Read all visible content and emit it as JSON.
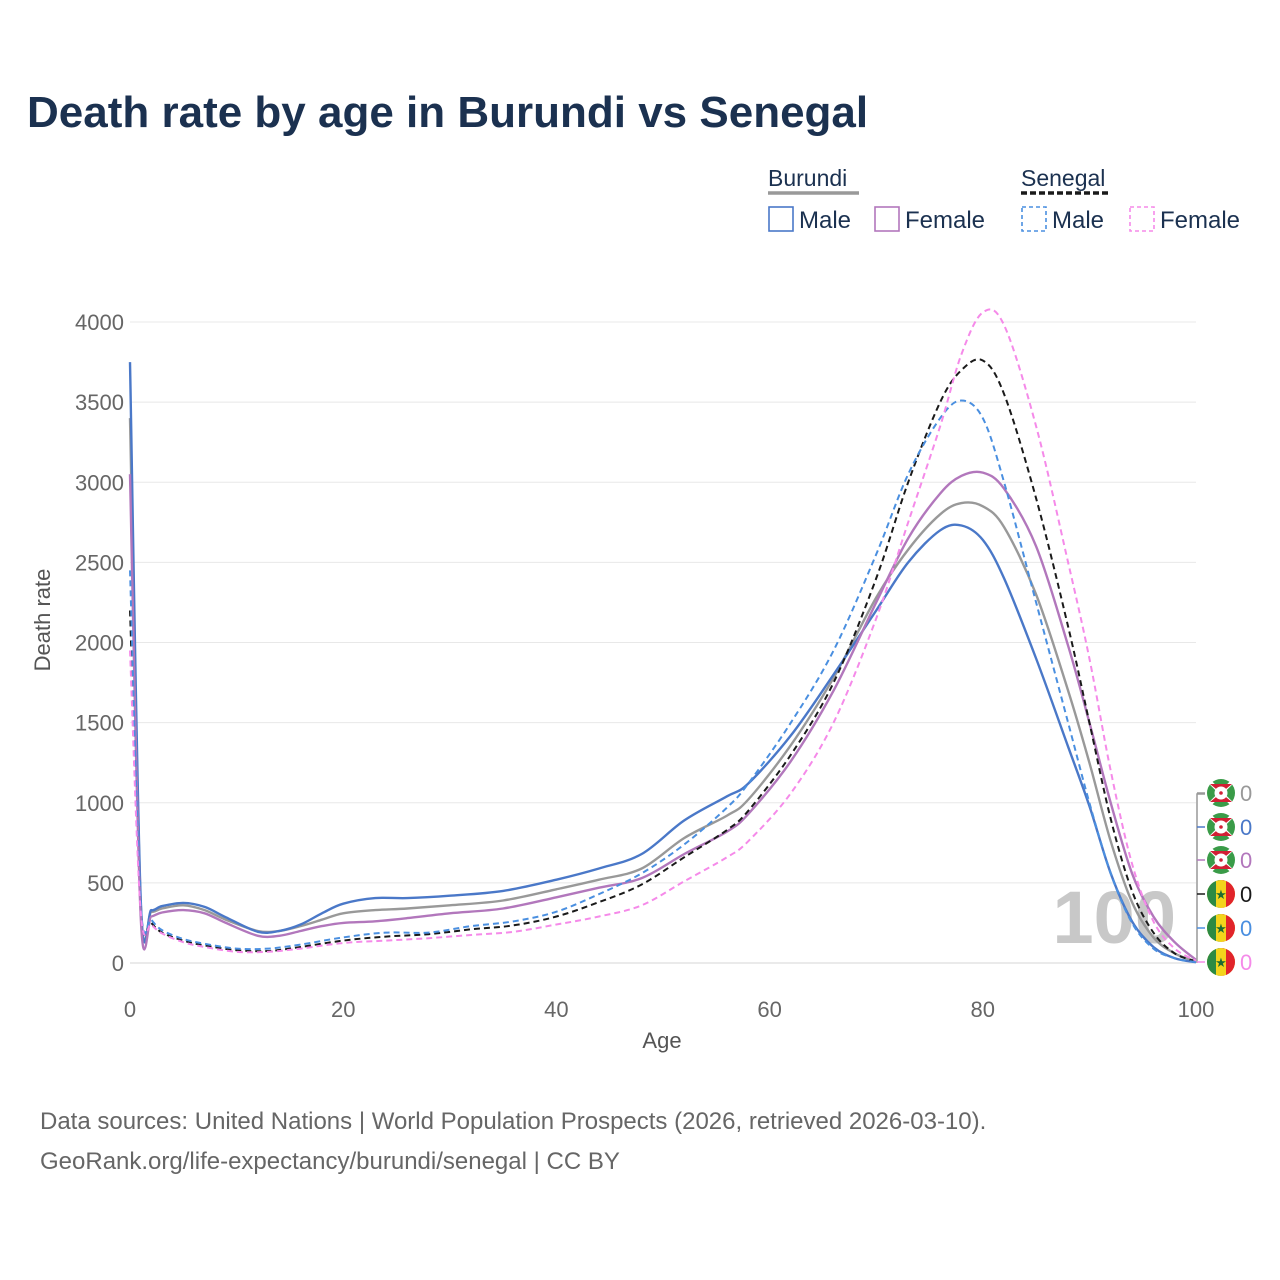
{
  "chart_data": {
    "type": "line",
    "title": "Death rate by age in Burundi vs Senegal",
    "xlabel": "Age",
    "ylabel": "Death rate",
    "xlim": [
      0,
      100
    ],
    "ylim": [
      0,
      4000
    ],
    "x_ticks": [
      0,
      20,
      40,
      60,
      80,
      100
    ],
    "y_ticks": [
      0,
      500,
      1000,
      1500,
      2000,
      2500,
      3000,
      3500,
      4000
    ],
    "grid": "horizontal",
    "legend_position": "top-right",
    "legend": {
      "groups": [
        {
          "name": "Burundi",
          "items": [
            "Male",
            "Female"
          ]
        },
        {
          "name": "Senegal",
          "items": [
            "Male",
            "Female"
          ]
        }
      ]
    },
    "annotation": "100",
    "end_labels": [
      "0",
      "0",
      "0",
      "0",
      "0",
      "0"
    ],
    "series": [
      {
        "name": "Burundi (total)",
        "color": "#999999",
        "dash": "solid",
        "points": [
          [
            0,
            3400
          ],
          [
            1,
            380
          ],
          [
            2,
            320
          ],
          [
            3,
            340
          ],
          [
            5,
            360
          ],
          [
            7,
            330
          ],
          [
            9,
            270
          ],
          [
            12,
            200
          ],
          [
            14,
            200
          ],
          [
            16,
            230
          ],
          [
            18,
            270
          ],
          [
            20,
            310
          ],
          [
            23,
            330
          ],
          [
            26,
            340
          ],
          [
            30,
            360
          ],
          [
            35,
            390
          ],
          [
            40,
            460
          ],
          [
            44,
            520
          ],
          [
            48,
            590
          ],
          [
            52,
            780
          ],
          [
            56,
            920
          ],
          [
            58,
            1020
          ],
          [
            62,
            1360
          ],
          [
            66,
            1780
          ],
          [
            70,
            2280
          ],
          [
            73,
            2580
          ],
          [
            76,
            2800
          ],
          [
            78,
            2870
          ],
          [
            80,
            2850
          ],
          [
            82,
            2720
          ],
          [
            85,
            2300
          ],
          [
            88,
            1700
          ],
          [
            90,
            1250
          ],
          [
            92,
            760
          ],
          [
            94,
            380
          ],
          [
            96,
            160
          ],
          [
            98,
            60
          ],
          [
            100,
            10
          ]
        ]
      },
      {
        "name": "Burundi Male",
        "color": "#4a78c8",
        "dash": "solid",
        "points": [
          [
            0,
            3750
          ],
          [
            1,
            400
          ],
          [
            2,
            330
          ],
          [
            3,
            355
          ],
          [
            5,
            375
          ],
          [
            7,
            350
          ],
          [
            9,
            285
          ],
          [
            12,
            195
          ],
          [
            14,
            200
          ],
          [
            16,
            240
          ],
          [
            18,
            310
          ],
          [
            20,
            370
          ],
          [
            23,
            405
          ],
          [
            26,
            405
          ],
          [
            30,
            420
          ],
          [
            35,
            450
          ],
          [
            40,
            520
          ],
          [
            44,
            590
          ],
          [
            48,
            680
          ],
          [
            52,
            890
          ],
          [
            56,
            1040
          ],
          [
            58,
            1120
          ],
          [
            62,
            1420
          ],
          [
            66,
            1800
          ],
          [
            70,
            2200
          ],
          [
            73,
            2500
          ],
          [
            76,
            2700
          ],
          [
            78,
            2730
          ],
          [
            80,
            2640
          ],
          [
            82,
            2400
          ],
          [
            85,
            1900
          ],
          [
            88,
            1350
          ],
          [
            90,
            980
          ],
          [
            92,
            560
          ],
          [
            94,
            260
          ],
          [
            96,
            100
          ],
          [
            98,
            30
          ],
          [
            100,
            5
          ]
        ]
      },
      {
        "name": "Burundi Female",
        "color": "#b277bc",
        "dash": "solid",
        "points": [
          [
            0,
            3050
          ],
          [
            1,
            290
          ],
          [
            2,
            290
          ],
          [
            3,
            315
          ],
          [
            5,
            330
          ],
          [
            7,
            310
          ],
          [
            9,
            250
          ],
          [
            12,
            170
          ],
          [
            14,
            170
          ],
          [
            16,
            200
          ],
          [
            18,
            230
          ],
          [
            20,
            250
          ],
          [
            23,
            260
          ],
          [
            26,
            280
          ],
          [
            30,
            310
          ],
          [
            35,
            340
          ],
          [
            40,
            410
          ],
          [
            44,
            470
          ],
          [
            48,
            530
          ],
          [
            52,
            680
          ],
          [
            56,
            820
          ],
          [
            58,
            930
          ],
          [
            62,
            1260
          ],
          [
            66,
            1700
          ],
          [
            70,
            2250
          ],
          [
            73,
            2650
          ],
          [
            76,
            2930
          ],
          [
            78,
            3040
          ],
          [
            80,
            3060
          ],
          [
            82,
            2960
          ],
          [
            85,
            2600
          ],
          [
            88,
            1980
          ],
          [
            90,
            1500
          ],
          [
            92,
            1000
          ],
          [
            94,
            560
          ],
          [
            96,
            290
          ],
          [
            98,
            130
          ],
          [
            100,
            20
          ]
        ]
      },
      {
        "name": "Senegal (total)",
        "color": "#1a1a1a",
        "dash": "dashed",
        "points": [
          [
            0,
            2200
          ],
          [
            1,
            340
          ],
          [
            2,
            250
          ],
          [
            3,
            190
          ],
          [
            5,
            140
          ],
          [
            7,
            110
          ],
          [
            10,
            80
          ],
          [
            13,
            75
          ],
          [
            16,
            100
          ],
          [
            20,
            140
          ],
          [
            24,
            165
          ],
          [
            28,
            180
          ],
          [
            32,
            210
          ],
          [
            36,
            235
          ],
          [
            40,
            290
          ],
          [
            44,
            380
          ],
          [
            48,
            490
          ],
          [
            52,
            660
          ],
          [
            56,
            830
          ],
          [
            58,
            950
          ],
          [
            62,
            1300
          ],
          [
            66,
            1750
          ],
          [
            70,
            2400
          ],
          [
            73,
            3000
          ],
          [
            76,
            3500
          ],
          [
            78,
            3700
          ],
          [
            80,
            3760
          ],
          [
            82,
            3550
          ],
          [
            85,
            2900
          ],
          [
            88,
            2100
          ],
          [
            90,
            1500
          ],
          [
            92,
            900
          ],
          [
            94,
            450
          ],
          [
            96,
            190
          ],
          [
            98,
            60
          ],
          [
            100,
            10
          ]
        ]
      },
      {
        "name": "Senegal Male",
        "color": "#4a8fe0",
        "dash": "dashed",
        "points": [
          [
            0,
            2450
          ],
          [
            1,
            370
          ],
          [
            2,
            270
          ],
          [
            3,
            205
          ],
          [
            5,
            150
          ],
          [
            7,
            120
          ],
          [
            10,
            90
          ],
          [
            13,
            90
          ],
          [
            16,
            115
          ],
          [
            20,
            160
          ],
          [
            24,
            190
          ],
          [
            28,
            190
          ],
          [
            32,
            230
          ],
          [
            36,
            260
          ],
          [
            40,
            320
          ],
          [
            44,
            430
          ],
          [
            48,
            560
          ],
          [
            52,
            740
          ],
          [
            56,
            970
          ],
          [
            58,
            1120
          ],
          [
            62,
            1500
          ],
          [
            66,
            1950
          ],
          [
            70,
            2550
          ],
          [
            73,
            3050
          ],
          [
            76,
            3400
          ],
          [
            78,
            3510
          ],
          [
            80,
            3400
          ],
          [
            82,
            3000
          ],
          [
            85,
            2250
          ],
          [
            88,
            1500
          ],
          [
            90,
            1000
          ],
          [
            92,
            560
          ],
          [
            94,
            250
          ],
          [
            96,
            90
          ],
          [
            98,
            30
          ],
          [
            100,
            5
          ]
        ]
      },
      {
        "name": "Senegal Female",
        "color": "#f58ae9",
        "dash": "dashed",
        "points": [
          [
            0,
            1950
          ],
          [
            1,
            320
          ],
          [
            2,
            240
          ],
          [
            3,
            185
          ],
          [
            5,
            130
          ],
          [
            7,
            100
          ],
          [
            10,
            70
          ],
          [
            13,
            70
          ],
          [
            16,
            90
          ],
          [
            20,
            125
          ],
          [
            24,
            140
          ],
          [
            28,
            155
          ],
          [
            32,
            175
          ],
          [
            36,
            195
          ],
          [
            40,
            240
          ],
          [
            44,
            290
          ],
          [
            48,
            360
          ],
          [
            52,
            510
          ],
          [
            56,
            660
          ],
          [
            58,
            760
          ],
          [
            62,
            1060
          ],
          [
            66,
            1500
          ],
          [
            70,
            2150
          ],
          [
            73,
            2750
          ],
          [
            76,
            3350
          ],
          [
            78,
            3800
          ],
          [
            80,
            4060
          ],
          [
            82,
            3980
          ],
          [
            85,
            3350
          ],
          [
            88,
            2500
          ],
          [
            90,
            1900
          ],
          [
            92,
            1200
          ],
          [
            94,
            620
          ],
          [
            96,
            260
          ],
          [
            98,
            90
          ],
          [
            100,
            15
          ]
        ]
      }
    ]
  },
  "footer": {
    "source": "Data sources: United Nations | World Population Prospects (2026, retrieved 2026-03-10).",
    "credit": "GeoRank.org/life-expectancy/burundi/senegal | CC BY"
  }
}
